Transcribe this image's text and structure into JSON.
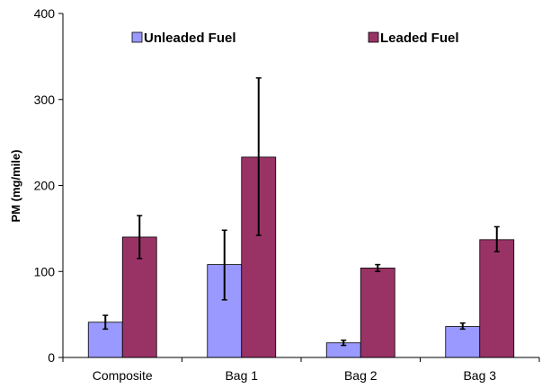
{
  "chart_data": {
    "type": "bar",
    "categories": [
      "Composite",
      "Bag 1",
      "Bag 2",
      "Bag 3"
    ],
    "series": [
      {
        "name": "Unleaded Fuel",
        "color": "#9999ff",
        "values": [
          41,
          108,
          17,
          36
        ],
        "error_low": [
          33,
          67,
          14,
          33
        ],
        "error_high": [
          49,
          148,
          20,
          40
        ]
      },
      {
        "name": "Leaded Fuel",
        "color": "#993366",
        "values": [
          140,
          233,
          104,
          137
        ],
        "error_low": [
          115,
          142,
          100,
          123
        ],
        "error_high": [
          165,
          325,
          108,
          152
        ]
      }
    ],
    "title": "",
    "xlabel": "",
    "ylabel": "PM (mg/mile)",
    "ylim": [
      0,
      400
    ],
    "yticks": [
      "0",
      "100",
      "200",
      "300",
      "400"
    ],
    "grid": false,
    "legend_position": "top"
  }
}
